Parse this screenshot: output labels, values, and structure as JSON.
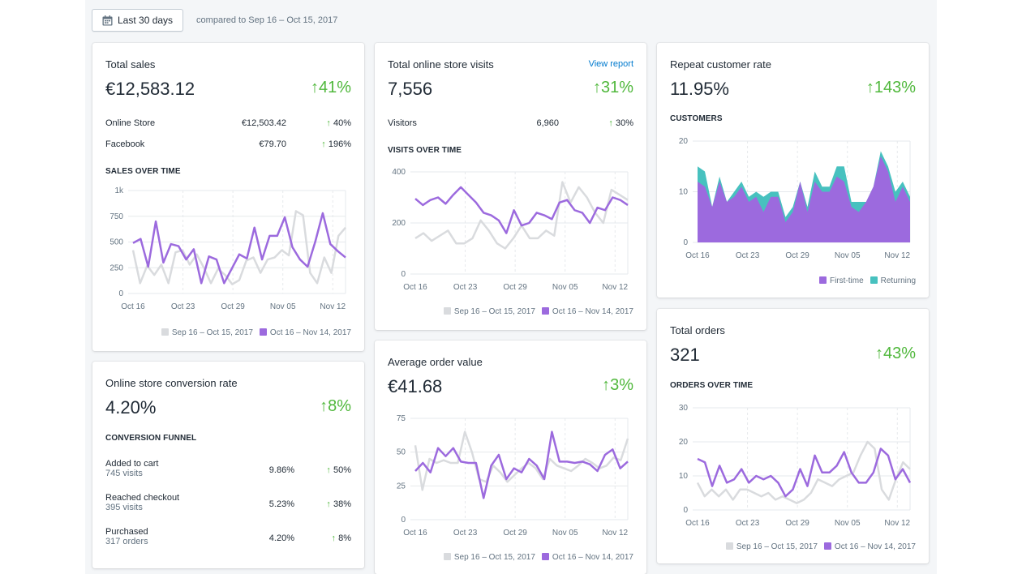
{
  "header": {
    "date_range_label": "Last 30 days",
    "compare_label": "compared to Sep 16 – Oct 15, 2017"
  },
  "colors": {
    "current": "#9c6ade",
    "previous": "#d9dbde",
    "returning": "#47c1bf",
    "positive": "#50b83c",
    "link": "#007ace"
  },
  "legend_previous": "Sep 16 – Oct 15, 2017",
  "legend_current": "Oct 16 – Nov 14, 2017",
  "x_ticks": [
    "Oct 16",
    "Oct 23",
    "Oct 29",
    "Nov 05",
    "Nov 12"
  ],
  "total_sales": {
    "title": "Total sales",
    "value": "€12,583.12",
    "change": "41%",
    "rows": [
      {
        "label": "Online Store",
        "amount": "€12,503.42",
        "change": "40%"
      },
      {
        "label": "Facebook",
        "amount": "€79.70",
        "change": "196%"
      }
    ],
    "section": "SALES OVER TIME"
  },
  "conversion": {
    "title": "Online store conversion rate",
    "value": "4.20%",
    "change": "8%",
    "section": "CONVERSION FUNNEL",
    "steps": [
      {
        "label": "Added to cart",
        "visits": "745 visits",
        "rate": "9.86%",
        "change": "50%"
      },
      {
        "label": "Reached checkout",
        "visits": "395 visits",
        "rate": "5.23%",
        "change": "38%"
      },
      {
        "label": "Purchased",
        "visits": "317 orders",
        "rate": "4.20%",
        "change": "8%"
      }
    ]
  },
  "visits": {
    "title": "Total online store visits",
    "link": "View report",
    "value": "7,556",
    "change": "31%",
    "row": {
      "label": "Visitors",
      "amount": "6,960",
      "change": "30%"
    },
    "section": "VISITS OVER TIME"
  },
  "aov": {
    "title": "Average order value",
    "value": "€41.68",
    "change": "3%"
  },
  "repeat": {
    "title": "Repeat customer rate",
    "value": "11.95%",
    "change": "143%",
    "section": "CUSTOMERS",
    "legend_first": "First-time",
    "legend_returning": "Returning"
  },
  "orders": {
    "title": "Total orders",
    "value": "321",
    "change": "43%",
    "section": "ORDERS OVER TIME"
  },
  "chart_data": [
    {
      "id": "sales",
      "type": "line",
      "y_ticks": [
        0,
        250,
        500,
        750,
        1000
      ],
      "y_tick_labels": [
        "0",
        "250",
        "500",
        "750",
        "1k"
      ],
      "ylim": [
        0,
        1000
      ],
      "x_ticks": [
        "Oct 16",
        "Oct 23",
        "Oct 29",
        "Nov 05",
        "Nov 12"
      ],
      "series": [
        {
          "name": "Sep 16 – Oct 15, 2017",
          "values": [
            420,
            100,
            270,
            180,
            280,
            100,
            400,
            420,
            280,
            380,
            250,
            100,
            240,
            180,
            90,
            130,
            320,
            350,
            200,
            330,
            350,
            420,
            370,
            800,
            760,
            200,
            100,
            350,
            200,
            560,
            640
          ]
        },
        {
          "name": "Oct 16 – Nov 14, 2017",
          "values": [
            490,
            530,
            260,
            700,
            300,
            480,
            460,
            330,
            430,
            100,
            360,
            330,
            100,
            240,
            380,
            340,
            640,
            330,
            560,
            560,
            740,
            450,
            330,
            260,
            500,
            780,
            480,
            410,
            350
          ]
        }
      ]
    },
    {
      "id": "visits",
      "type": "line",
      "y_ticks": [
        0,
        200,
        400
      ],
      "ylim": [
        0,
        400
      ],
      "x_ticks": [
        "Oct 16",
        "Oct 23",
        "Oct 29",
        "Nov 05",
        "Nov 12"
      ],
      "series": [
        {
          "name": "Sep 16 – Oct 15, 2017",
          "values": [
            140,
            160,
            130,
            150,
            170,
            120,
            120,
            140,
            210,
            170,
            120,
            100,
            140,
            190,
            140,
            140,
            170,
            150,
            360,
            280,
            340,
            300,
            240,
            200,
            330,
            310,
            290
          ]
        },
        {
          "name": "Oct 16 – Nov 14, 2017",
          "values": [
            295,
            270,
            290,
            300,
            275,
            310,
            340,
            310,
            280,
            240,
            230,
            210,
            160,
            250,
            190,
            200,
            240,
            230,
            215,
            280,
            290,
            250,
            240,
            200,
            260,
            250,
            300,
            290,
            270
          ]
        }
      ]
    },
    {
      "id": "aov",
      "type": "line",
      "y_ticks": [
        0,
        25,
        50,
        75
      ],
      "ylim": [
        0,
        75
      ],
      "x_ticks": [
        "Oct 16",
        "Oct 23",
        "Oct 29",
        "Nov 05",
        "Nov 12"
      ],
      "series": [
        {
          "name": "Sep 16 – Oct 15, 2017",
          "values": [
            55,
            22,
            45,
            42,
            44,
            42,
            42,
            65,
            50,
            30,
            28,
            40,
            35,
            28,
            33,
            38,
            42,
            38,
            30,
            45,
            40,
            38,
            36,
            40,
            45,
            42,
            38,
            40,
            46,
            44,
            60
          ]
        },
        {
          "name": "Oct 16 – Nov 14, 2017",
          "values": [
            36,
            42,
            35,
            53,
            47,
            53,
            43,
            42,
            42,
            16,
            40,
            48,
            30,
            38,
            35,
            45,
            40,
            30,
            65,
            43,
            43,
            42,
            43,
            41,
            36,
            48,
            52,
            38,
            43
          ]
        }
      ]
    },
    {
      "id": "repeat",
      "type": "area",
      "y_ticks": [
        0,
        10,
        20
      ],
      "ylim": [
        0,
        20
      ],
      "x_ticks": [
        "Oct 16",
        "Oct 23",
        "Oct 29",
        "Nov 05",
        "Nov 12"
      ],
      "series": [
        {
          "name": "First-time",
          "values": [
            12,
            11,
            7,
            12,
            8,
            9,
            11,
            8,
            9,
            6,
            9,
            9,
            4,
            6,
            12,
            6,
            12,
            10,
            10,
            13,
            12,
            7,
            6,
            8,
            11,
            17,
            14,
            8,
            11,
            8
          ]
        },
        {
          "name": "Returning",
          "values": [
            3,
            3,
            0,
            1,
            0,
            1,
            1,
            1,
            1,
            3,
            1,
            1,
            1,
            1,
            0,
            1,
            2,
            1,
            1,
            2,
            3,
            1,
            2,
            0,
            0,
            1,
            1,
            2,
            1,
            1
          ]
        }
      ]
    },
    {
      "id": "orders",
      "type": "line",
      "y_ticks": [
        0,
        10,
        20,
        30
      ],
      "ylim": [
        0,
        30
      ],
      "x_ticks": [
        "Oct 16",
        "Oct 23",
        "Oct 29",
        "Nov 05",
        "Nov 12"
      ],
      "series": [
        {
          "name": "Sep 16 – Oct 15, 2017",
          "values": [
            8,
            4,
            6,
            4,
            6,
            3,
            6,
            6,
            5,
            4,
            5,
            3,
            4,
            3,
            2,
            3,
            5,
            9,
            8,
            7,
            9,
            10,
            11,
            16,
            20,
            18,
            6,
            3,
            9,
            14,
            12
          ]
        },
        {
          "name": "Oct 16 – Nov 14, 2017",
          "values": [
            15,
            14,
            7,
            13,
            8,
            9,
            12,
            8,
            10,
            9,
            10,
            8,
            4,
            6,
            12,
            7,
            16,
            11,
            11,
            13,
            17,
            11,
            8,
            8,
            11,
            18,
            16,
            9,
            12,
            8
          ]
        }
      ]
    }
  ]
}
